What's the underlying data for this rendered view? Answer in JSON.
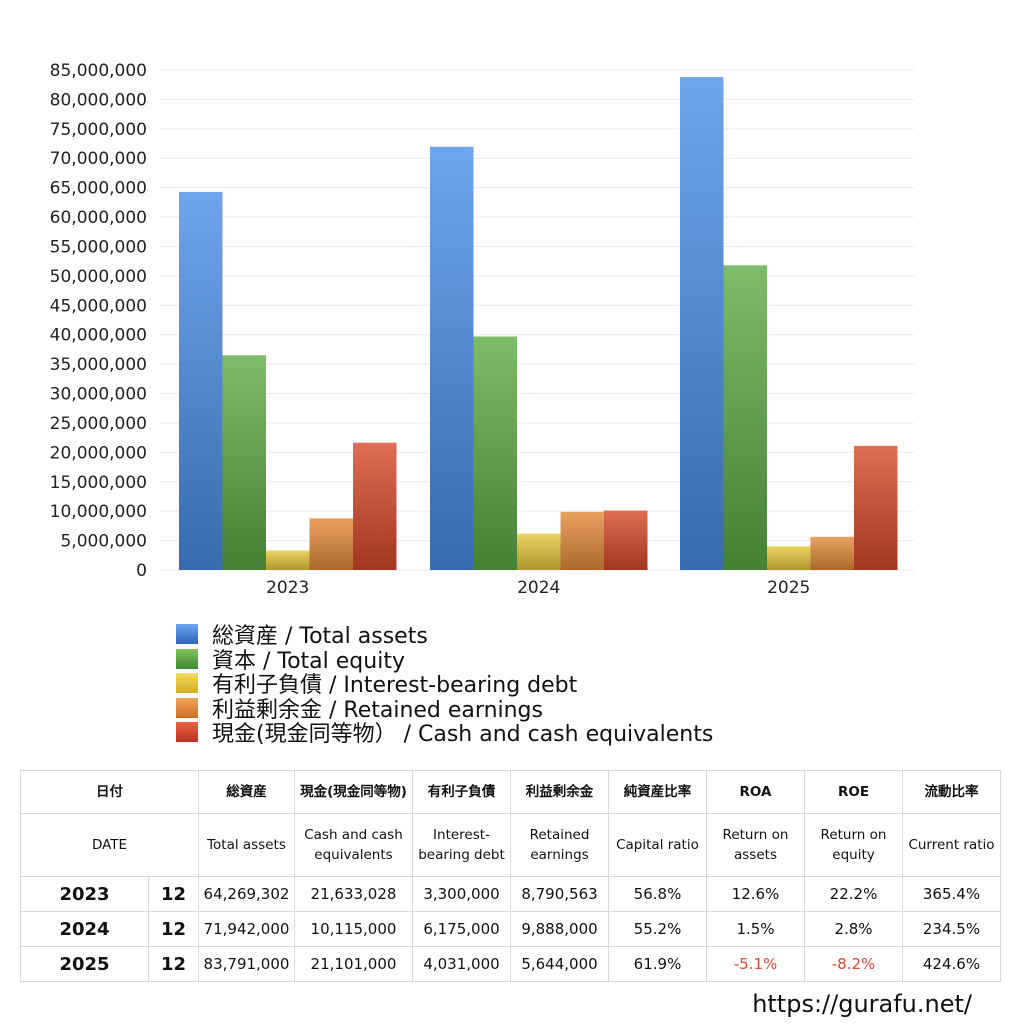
{
  "chart_data": {
    "type": "bar",
    "categories": [
      "2023",
      "2024",
      "2025"
    ],
    "series": [
      {
        "name": "総資産 / Total assets",
        "values": [
          64269302,
          71942000,
          83791000
        ]
      },
      {
        "name": "資本 / Total equity",
        "values": [
          36500000,
          39700000,
          51800000
        ]
      },
      {
        "name": "有利子負債 / Interest-bearing debt",
        "values": [
          3300000,
          6175000,
          4031000
        ]
      },
      {
        "name": "利益剰余金 / Retained earnings",
        "values": [
          8790563,
          9888000,
          5644000
        ]
      },
      {
        "name": "現金(現金同等物） /  Cash and cash equivalents",
        "values": [
          21633028,
          10115000,
          21101000
        ]
      }
    ],
    "colors": [
      "#4a8ee6",
      "#5cab45",
      "#e6c93a",
      "#e58b3a",
      "#d8482c"
    ],
    "ylim": [
      0,
      85000000
    ],
    "ytick_step": 5000000,
    "grid": true,
    "legend_position": "bottom"
  },
  "table": {
    "headers_ja": [
      "日付",
      "",
      "総資産",
      "現金(現金同等物)",
      "有利子負債",
      "利益剰余金",
      "純資産比率",
      "ROA",
      "ROE",
      "流動比率"
    ],
    "headers_en": [
      "DATE",
      "",
      "Total assets",
      "Cash and cash equivalents",
      "Interest-bearing debt",
      "Retained earnings",
      "Capital ratio",
      "Return on assets",
      "Return on equity",
      "Current ratio"
    ],
    "rows": [
      {
        "year": "2023",
        "month": "12",
        "total_assets": "64,269,302",
        "cash": "21,633,028",
        "debt": "3,300,000",
        "retained": "8,790,563",
        "capital_ratio": "56.8%",
        "roa": "12.6%",
        "roe": "22.2%",
        "current_ratio": "365.4%"
      },
      {
        "year": "2024",
        "month": "12",
        "total_assets": "71,942,000",
        "cash": "10,115,000",
        "debt": "6,175,000",
        "retained": "9,888,000",
        "capital_ratio": "55.2%",
        "roa": "1.5%",
        "roe": "2.8%",
        "current_ratio": "234.5%"
      },
      {
        "year": "2025",
        "month": "12",
        "total_assets": "83,791,000",
        "cash": "21,101,000",
        "debt": "4,031,000",
        "retained": "5,644,000",
        "capital_ratio": "61.9%",
        "roa": "-5.1%",
        "roe": "-8.2%",
        "current_ratio": "424.6%"
      }
    ]
  },
  "footer": {
    "url": "https://gurafu.net/"
  }
}
